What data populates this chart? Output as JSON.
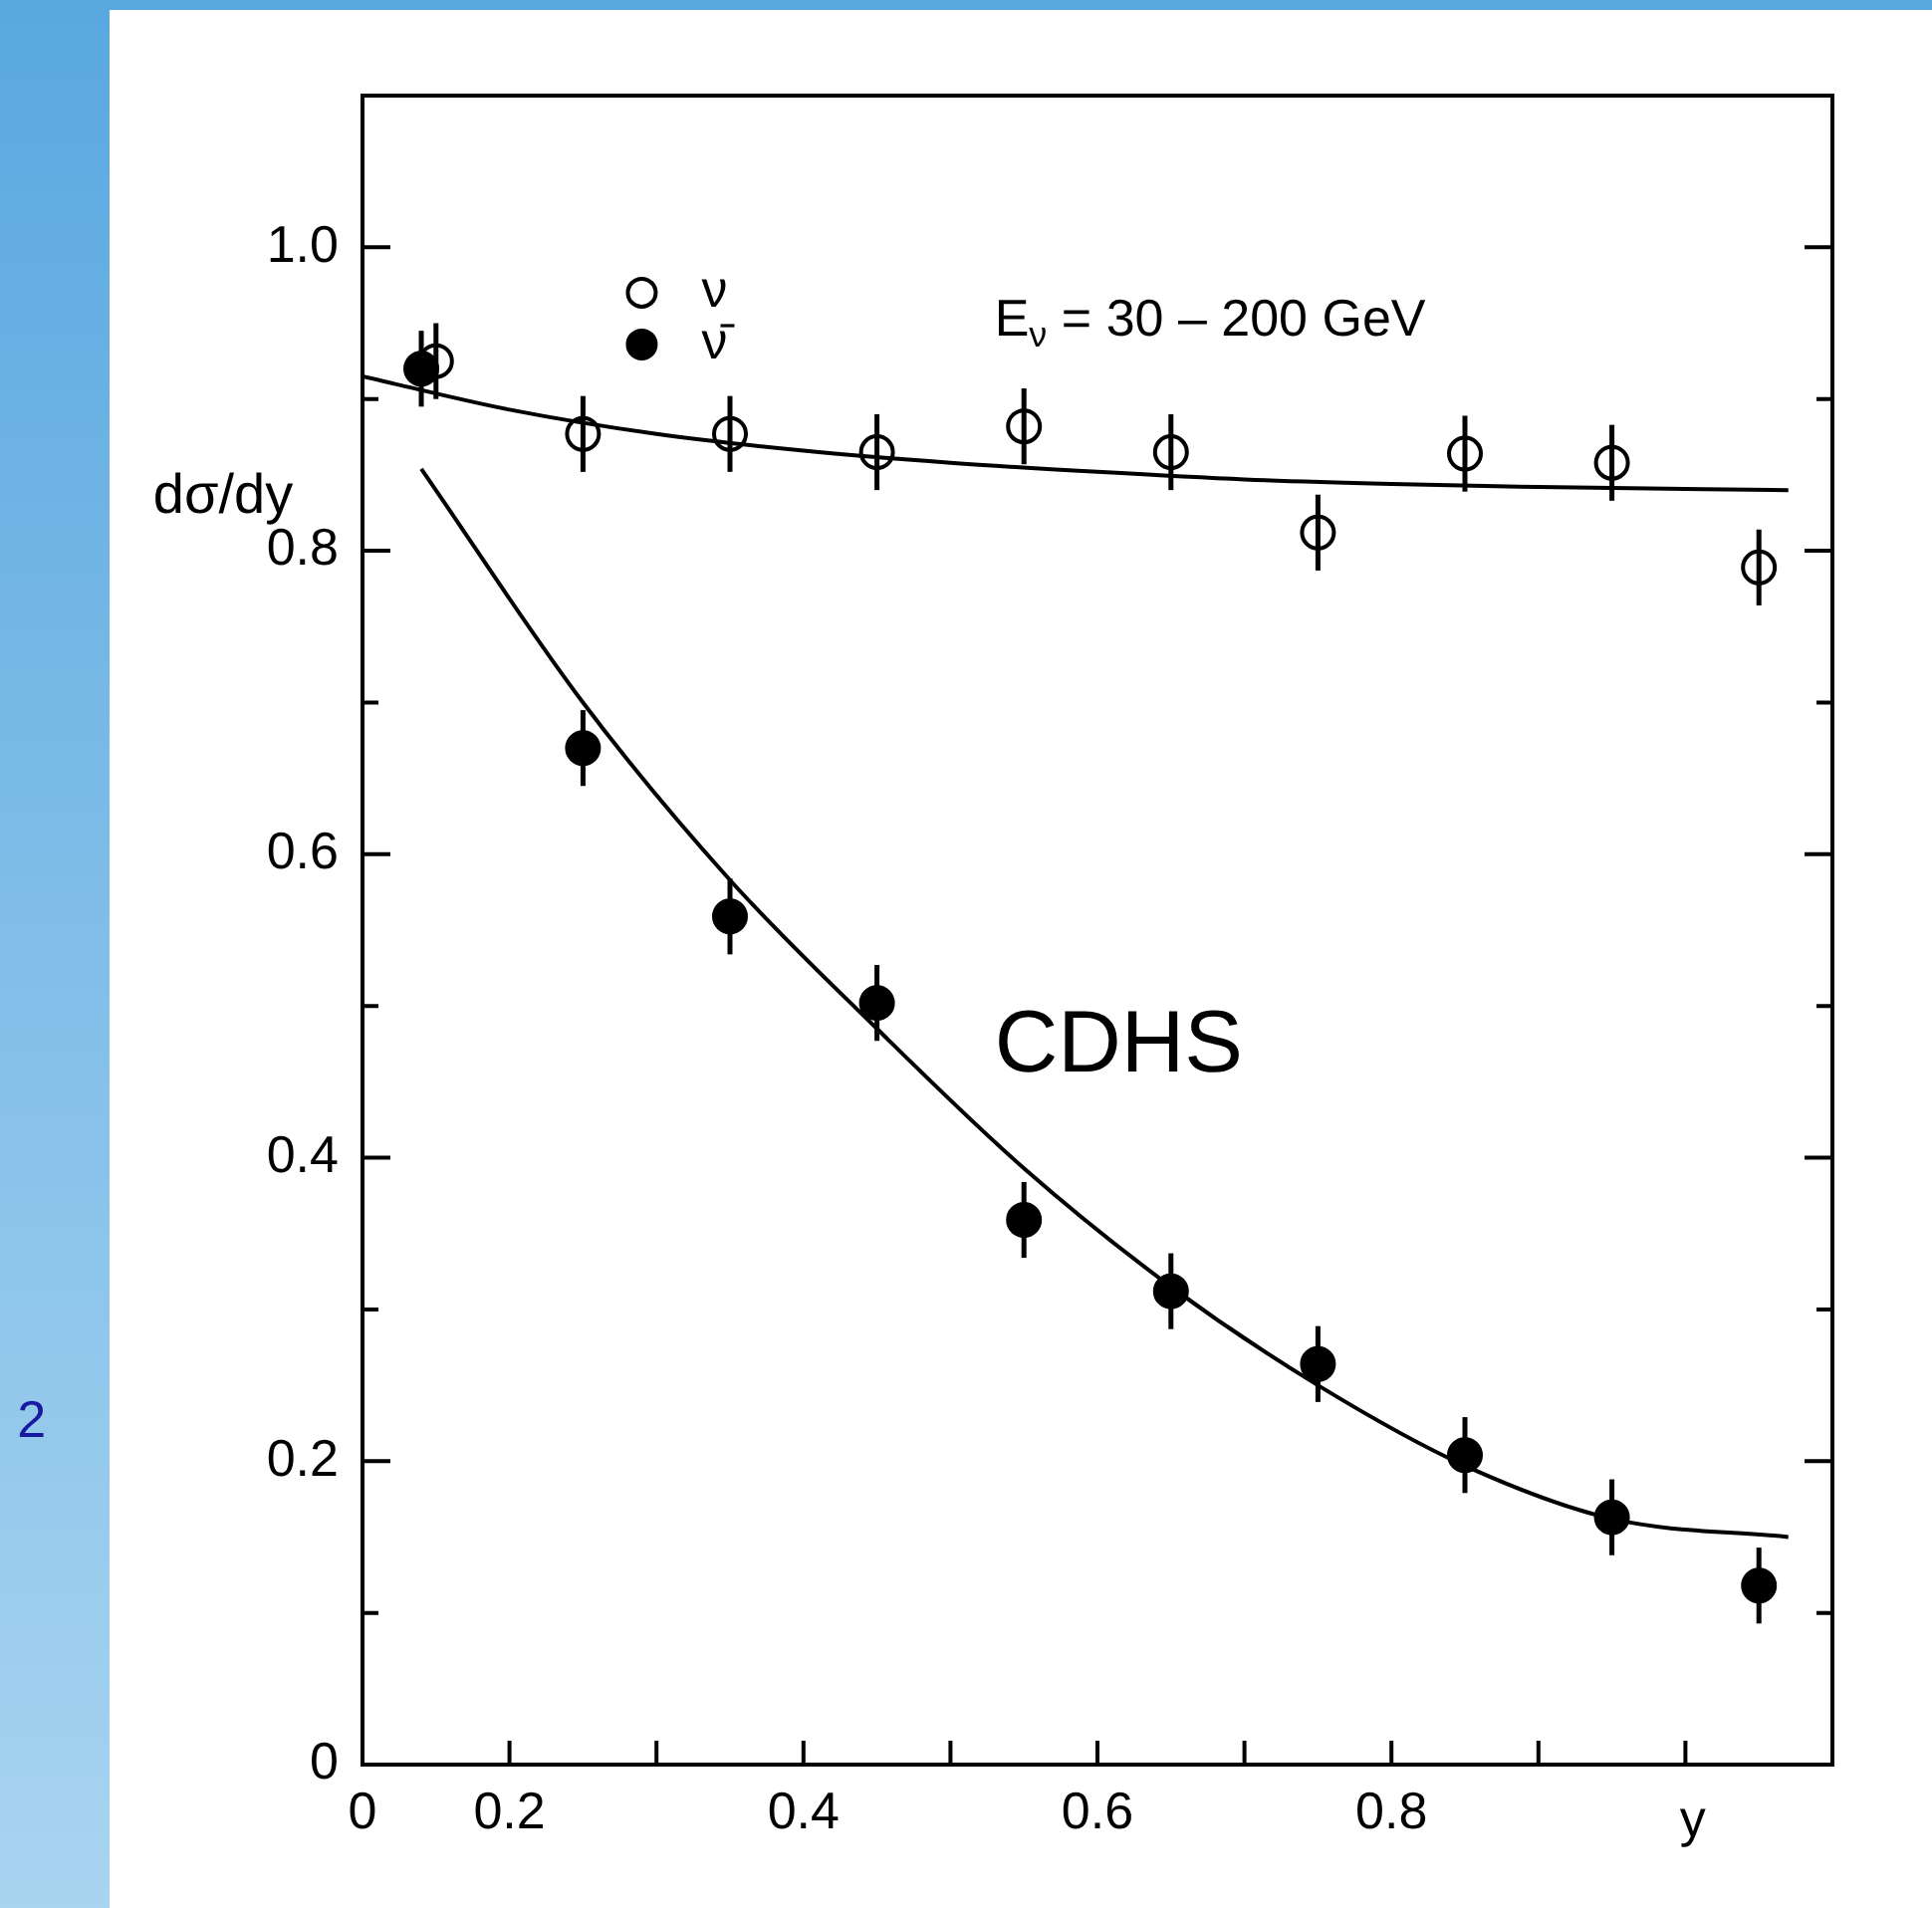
{
  "chart_data": {
    "type": "scatter",
    "ylabel": "dσ/dy",
    "xlabel": "y",
    "annotations": [
      "E$_{ν}$ = 30 – 200 GeV",
      "CDHS",
      "2"
    ],
    "xlim": [
      0.1,
      1.1
    ],
    "xticks": [
      {
        "value": 0.1,
        "label": "0"
      },
      0.2,
      {
        "value": 0.3,
        "label": null
      },
      0.4,
      {
        "value": 0.5,
        "label": null
      },
      0.6,
      {
        "value": 0.7,
        "label": null
      },
      0.8,
      {
        "value": 0.9,
        "label": null
      },
      {
        "value": 1,
        "label": null
      }
    ],
    "ylim": [
      0,
      1.1
    ],
    "yticks": [
      0,
      {
        "value": 0.1,
        "label": null
      },
      0.2,
      {
        "value": 0.3,
        "label": null
      },
      0.4,
      {
        "value": 0.5,
        "label": null
      },
      0.6,
      {
        "value": 0.7,
        "label": null
      },
      0.8,
      {
        "value": 0.9,
        "label": null
      },
      {
        "value": 1,
        "label": "1.0"
      }
    ],
    "marker": "circle",
    "legend": "top",
    "series": [
      {
        "name": "ν",
        "color": "#ffffff",
        "x": [
          0.15,
          0.25,
          0.35,
          0.45,
          0.55,
          0.65,
          0.75,
          0.85,
          0.95,
          1.05
        ],
        "values": [
          0.925,
          0.877,
          0.877,
          0.865,
          0.882,
          0.865,
          0.812,
          0.864,
          0.858,
          0.789
        ],
        "errors": [
          0.025,
          0.025,
          0.025,
          0.025,
          0.025,
          0.025,
          0.025,
          0.025,
          0.025,
          0.025
        ]
      },
      {
        "name": "ν̄",
        "color": "#000000",
        "x": [
          0.14,
          0.25,
          0.35,
          0.45,
          0.55,
          0.65,
          0.75,
          0.85,
          0.95,
          1.05
        ],
        "values": [
          0.92,
          0.67,
          0.559,
          0.502,
          0.359,
          0.312,
          0.264,
          0.204,
          0.163,
          0.118
        ],
        "errors": [
          0.025,
          0.025,
          0.025,
          0.025,
          0.025,
          0.025,
          0.025,
          0.025,
          0.025,
          0.025
        ]
      },
      {
        "type": "line",
        "color": "#000000",
        "marker": "none",
        "x": [
          0.1,
          0.2,
          0.3,
          0.4,
          0.5,
          0.6,
          0.7,
          0.8,
          0.9,
          1.07
        ],
        "values": [
          0.915,
          0.893,
          0.877,
          0.866,
          0.858,
          0.852,
          0.847,
          0.844,
          0.842,
          0.84
        ]
      },
      {
        "type": "line",
        "color": "#000000",
        "marker": "none",
        "x": [
          0.14,
          0.25,
          0.35,
          0.45,
          0.55,
          0.65,
          0.75,
          0.85,
          0.95,
          1.07
        ],
        "values": [
          0.854,
          0.7,
          0.583,
          0.485,
          0.393,
          0.315,
          0.25,
          0.197,
          0.162,
          0.15
        ]
      }
    ]
  }
}
